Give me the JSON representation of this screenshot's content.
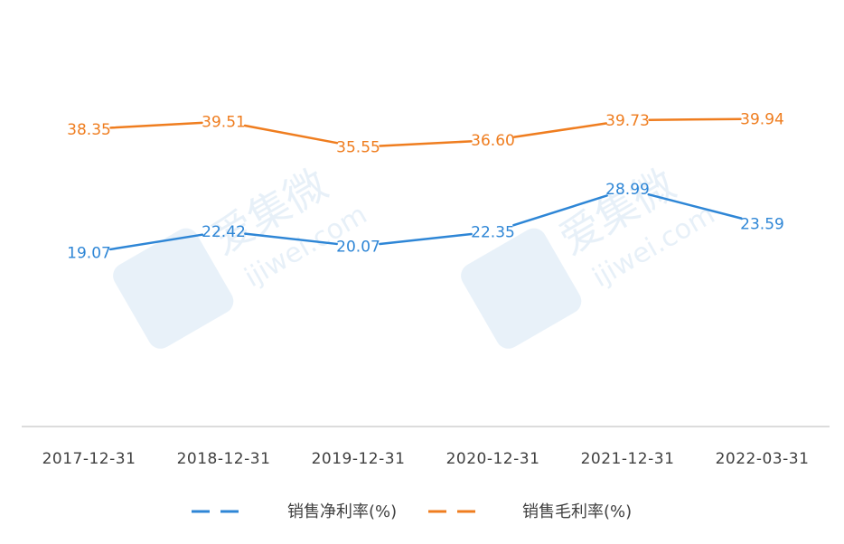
{
  "watermark": {
    "brand": "爱集微",
    "site": "ijiwei.com"
  },
  "chart_data": {
    "type": "line",
    "categories": [
      "2017-12-31",
      "2018-12-31",
      "2019-12-31",
      "2020-12-31",
      "2021-12-31",
      "2022-03-31"
    ],
    "series": [
      {
        "name": "销售净利率(%)",
        "color": "#2e86d6",
        "values": [
          19.07,
          22.42,
          20.07,
          22.35,
          28.99,
          23.59
        ]
      },
      {
        "name": "销售毛利率(%)",
        "color": "#ef7d1f",
        "values": [
          38.35,
          39.51,
          35.55,
          36.6,
          39.73,
          39.94
        ]
      }
    ],
    "labels": [
      [
        "19.07",
        "22.42",
        "20.07",
        "22.35",
        "28.99",
        "23.59"
      ],
      [
        "38.35",
        "39.51",
        "35.55",
        "36.60",
        "39.73",
        "39.94"
      ]
    ],
    "ylim": [
      -8,
      50
    ],
    "grid": false,
    "legend_position": "bottom"
  }
}
